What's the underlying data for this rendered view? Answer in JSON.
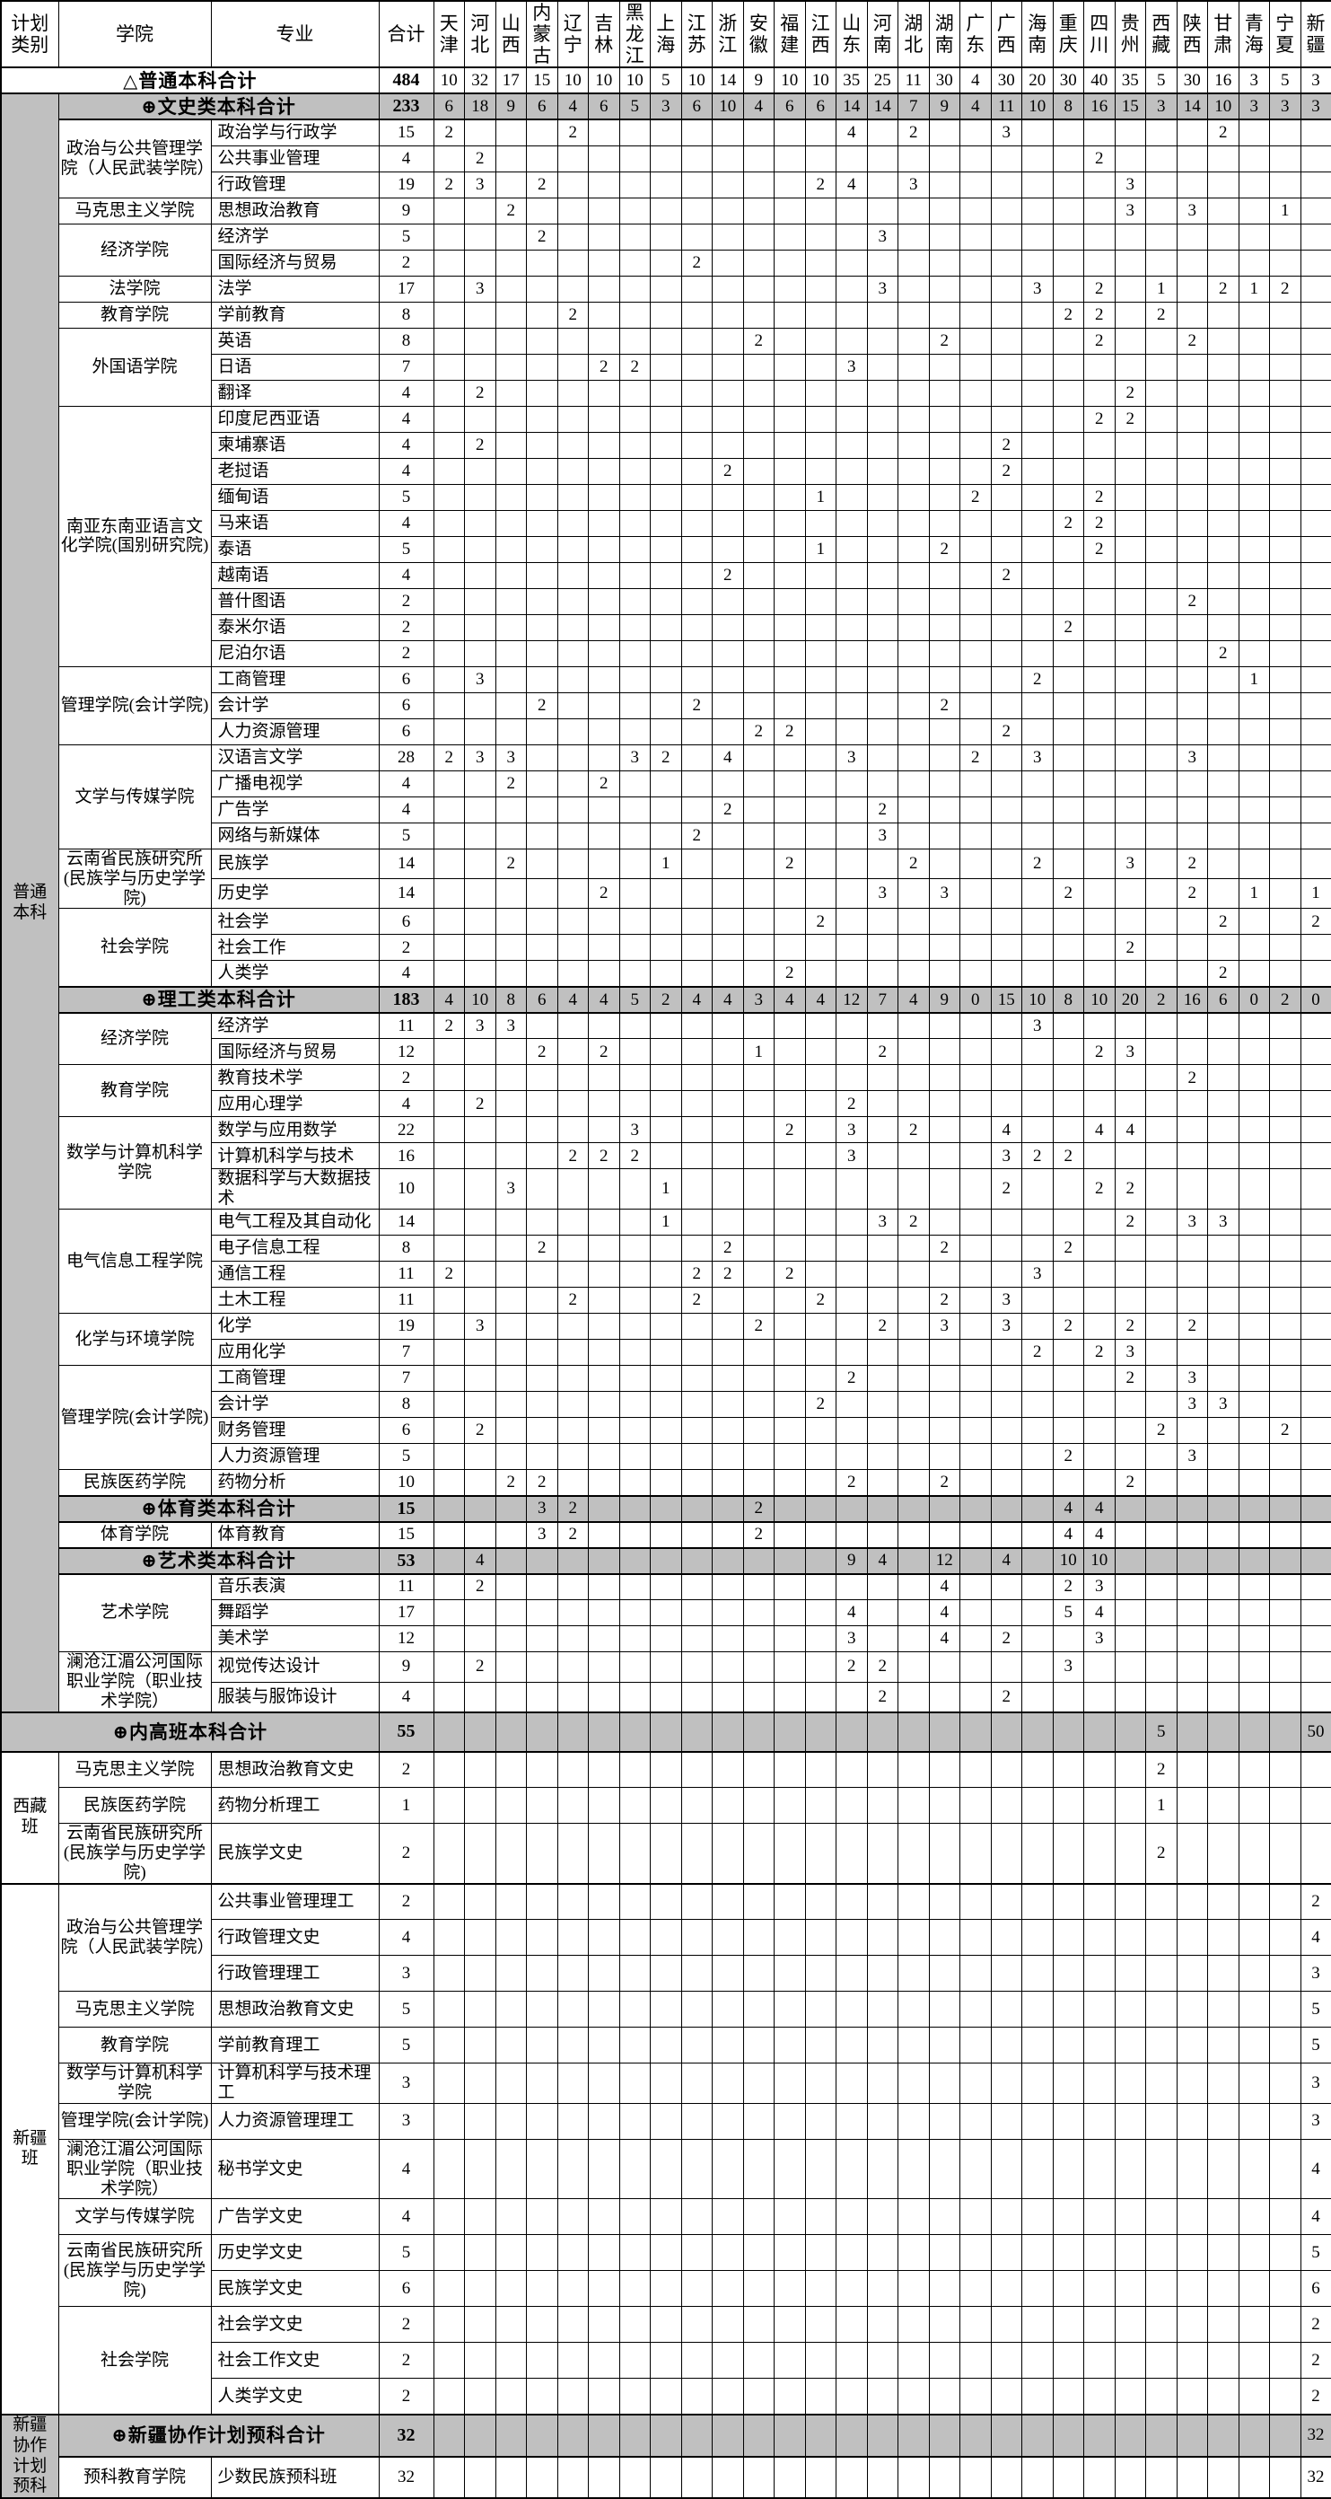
{
  "header": {
    "plan_type": "计划类别",
    "college": "学院",
    "major": "专业",
    "total": "合计"
  },
  "provinces": [
    "天津",
    "河北",
    "山西",
    "内蒙古",
    "辽宁",
    "吉林",
    "黑龙江",
    "上海",
    "江苏",
    "浙江",
    "安徽",
    "福建",
    "江西",
    "山东",
    "河南",
    "湖北",
    "湖南",
    "广东",
    "广西",
    "海南",
    "重庆",
    "四川",
    "贵州",
    "西藏",
    "陕西",
    "甘肃",
    "青海",
    "宁夏",
    "新疆"
  ],
  "rows": [
    {
      "kind": "grand",
      "label": "△普通本科合计",
      "total": 484,
      "values": {
        "天津": 10,
        "河北": 32,
        "山西": 17,
        "内蒙古": 15,
        "辽宁": 10,
        "吉林": 10,
        "黑龙江": 10,
        "上海": 5,
        "江苏": 10,
        "浙江": 14,
        "安徽": 9,
        "福建": 10,
        "江西": 10,
        "山东": 35,
        "河南": 25,
        "湖北": 11,
        "湖南": 30,
        "广东": 4,
        "广西": 30,
        "海南": 20,
        "重庆": 30,
        "四川": 40,
        "贵州": 35,
        "西藏": 5,
        "陕西": 30,
        "甘肃": 16,
        "青海": 3,
        "宁夏": 5,
        "新疆": 3
      }
    },
    {
      "kind": "section",
      "label": "⊕文史类本科合计",
      "total": 233,
      "plan": {
        "label": "普通本科",
        "span": 61
      },
      "values": {
        "天津": 6,
        "河北": 18,
        "山西": 9,
        "内蒙古": 6,
        "辽宁": 4,
        "吉林": 6,
        "黑龙江": 5,
        "上海": 3,
        "江苏": 6,
        "浙江": 10,
        "安徽": 4,
        "福建": 6,
        "江西": 6,
        "山东": 14,
        "河南": 14,
        "湖北": 7,
        "湖南": 9,
        "广东": 4,
        "广西": 11,
        "海南": 10,
        "重庆": 8,
        "四川": 16,
        "贵州": 15,
        "西藏": 3,
        "陕西": 14,
        "甘肃": 10,
        "青海": 3,
        "宁夏": 3,
        "新疆": 3
      }
    },
    {
      "kind": "major",
      "college": {
        "label": "政治与公共管理学院（人民武装学院）",
        "span": 3
      },
      "major": "政治学与行政学",
      "total": 15,
      "values": {
        "天津": 2,
        "辽宁": 2,
        "山东": 4,
        "湖北": 2,
        "广西": 3,
        "甘肃": 2
      }
    },
    {
      "kind": "major",
      "major": "公共事业管理",
      "total": 4,
      "values": {
        "河北": 2,
        "四川": 2
      }
    },
    {
      "kind": "major",
      "major": "行政管理",
      "total": 19,
      "values": {
        "天津": 2,
        "河北": 3,
        "内蒙古": 2,
        "江西": 2,
        "山东": 4,
        "湖北": 3,
        "贵州": 3
      }
    },
    {
      "kind": "major",
      "college": {
        "label": "马克思主义学院",
        "span": 1
      },
      "major": "思想政治教育",
      "total": 9,
      "values": {
        "山西": 2,
        "贵州": 3,
        "陕西": 3,
        "宁夏": 1
      }
    },
    {
      "kind": "major",
      "college": {
        "label": "经济学院",
        "span": 2
      },
      "major": "经济学",
      "total": 5,
      "values": {
        "内蒙古": 2,
        "河南": 3
      }
    },
    {
      "kind": "major",
      "major": "国际经济与贸易",
      "total": 2,
      "values": {
        "江苏": 2
      }
    },
    {
      "kind": "major",
      "college": {
        "label": "法学院",
        "span": 1
      },
      "major": "法学",
      "total": 17,
      "values": {
        "河北": 3,
        "河南": 3,
        "海南": 3,
        "四川": 2,
        "西藏": 1,
        "甘肃": 2,
        "青海": 1,
        "宁夏": 2
      }
    },
    {
      "kind": "major",
      "college": {
        "label": "教育学院",
        "span": 1
      },
      "major": "学前教育",
      "total": 8,
      "values": {
        "辽宁": 2,
        "重庆": 2,
        "四川": 2,
        "西藏": 2
      }
    },
    {
      "kind": "major",
      "college": {
        "label": "外国语学院",
        "span": 3
      },
      "major": "英语",
      "total": 8,
      "values": {
        "安徽": 2,
        "湖南": 2,
        "四川": 2,
        "陕西": 2
      }
    },
    {
      "kind": "major",
      "major": "日语",
      "total": 7,
      "values": {
        "吉林": 2,
        "黑龙江": 2,
        "山东": 3
      }
    },
    {
      "kind": "major",
      "major": "翻译",
      "total": 4,
      "values": {
        "河北": 2,
        "贵州": 2
      }
    },
    {
      "kind": "major",
      "college": {
        "label": "南亚东南亚语言文化学院(国别研究院)",
        "span": 10
      },
      "major": "印度尼西亚语",
      "total": 4,
      "values": {
        "四川": 2,
        "贵州": 2
      }
    },
    {
      "kind": "major",
      "major": "柬埔寨语",
      "total": 4,
      "values": {
        "河北": 2,
        "广西": 2
      }
    },
    {
      "kind": "major",
      "major": "老挝语",
      "total": 4,
      "values": {
        "浙江": 2,
        "广西": 2
      }
    },
    {
      "kind": "major",
      "major": "缅甸语",
      "total": 5,
      "values": {
        "江西": 1,
        "广东": 2,
        "四川": 2
      }
    },
    {
      "kind": "major",
      "major": "马来语",
      "total": 4,
      "values": {
        "重庆": 2,
        "四川": 2
      }
    },
    {
      "kind": "major",
      "major": "泰语",
      "total": 5,
      "values": {
        "江西": 1,
        "湖南": 2,
        "四川": 2
      }
    },
    {
      "kind": "major",
      "major": "越南语",
      "total": 4,
      "values": {
        "浙江": 2,
        "广西": 2
      }
    },
    {
      "kind": "major",
      "major": "普什图语",
      "total": 2,
      "values": {
        "陕西": 2
      }
    },
    {
      "kind": "major",
      "major": "泰米尔语",
      "total": 2,
      "values": {
        "重庆": 2
      }
    },
    {
      "kind": "major",
      "major": "尼泊尔语",
      "total": 2,
      "values": {
        "甘肃": 2
      }
    },
    {
      "kind": "major",
      "college": {
        "label": "管理学院(会计学院)",
        "span": 3
      },
      "major": "工商管理",
      "total": 6,
      "values": {
        "河北": 3,
        "海南": 2,
        "青海": 1
      }
    },
    {
      "kind": "major",
      "major": "会计学",
      "total": 6,
      "values": {
        "内蒙古": 2,
        "江苏": 2,
        "湖南": 2
      }
    },
    {
      "kind": "major",
      "major": "人力资源管理",
      "total": 6,
      "values": {
        "安徽": 2,
        "福建": 2,
        "广西": 2
      }
    },
    {
      "kind": "major",
      "college": {
        "label": "文学与传媒学院",
        "span": 4
      },
      "major": "汉语言文学",
      "total": 28,
      "values": {
        "天津": 2,
        "河北": 3,
        "山西": 3,
        "黑龙江": 3,
        "上海": 2,
        "浙江": 4,
        "山东": 3,
        "广东": 2,
        "海南": 3,
        "陕西": 3
      }
    },
    {
      "kind": "major",
      "major": "广播电视学",
      "total": 4,
      "values": {
        "山西": 2,
        "吉林": 2
      }
    },
    {
      "kind": "major",
      "major": "广告学",
      "total": 4,
      "values": {
        "浙江": 2,
        "河南": 2
      }
    },
    {
      "kind": "major",
      "major": "网络与新媒体",
      "total": 5,
      "values": {
        "江苏": 2,
        "河南": 3
      }
    },
    {
      "kind": "major",
      "college": {
        "label": "云南省民族研究所(民族学与历史学学院)",
        "span": 2
      },
      "major": "民族学",
      "total": 14,
      "values": {
        "山西": 2,
        "上海": 1,
        "福建": 2,
        "湖北": 2,
        "海南": 2,
        "贵州": 3,
        "陕西": 2
      }
    },
    {
      "kind": "major",
      "major": "历史学",
      "total": 14,
      "values": {
        "吉林": 2,
        "河南": 3,
        "湖南": 3,
        "重庆": 2,
        "陕西": 2,
        "青海": 1,
        "新疆": 1
      }
    },
    {
      "kind": "major",
      "college": {
        "label": "社会学院",
        "span": 3
      },
      "major": "社会学",
      "total": 6,
      "values": {
        "江西": 2,
        "甘肃": 2,
        "新疆": 2
      }
    },
    {
      "kind": "major",
      "major": "社会工作",
      "total": 2,
      "values": {
        "贵州": 2
      }
    },
    {
      "kind": "major",
      "major": "人类学",
      "total": 4,
      "values": {
        "福建": 2,
        "甘肃": 2
      }
    },
    {
      "kind": "section",
      "label": "⊕理工类本科合计",
      "total": 183,
      "values": {
        "天津": 4,
        "河北": 10,
        "山西": 8,
        "内蒙古": 6,
        "辽宁": 4,
        "吉林": 4,
        "黑龙江": 5,
        "上海": 2,
        "江苏": 4,
        "浙江": 4,
        "安徽": 3,
        "福建": 4,
        "江西": 4,
        "山东": 12,
        "河南": 7,
        "湖北": 4,
        "湖南": 9,
        "广东": 0,
        "广西": 15,
        "海南": 10,
        "重庆": 8,
        "四川": 10,
        "贵州": 20,
        "西藏": 2,
        "陕西": 16,
        "甘肃": 6,
        "青海": 0,
        "宁夏": 2,
        "新疆": 0
      }
    },
    {
      "kind": "major",
      "college": {
        "label": "经济学院",
        "span": 2
      },
      "major": "经济学",
      "total": 11,
      "values": {
        "天津": 2,
        "河北": 3,
        "山西": 3,
        "海南": 3
      }
    },
    {
      "kind": "major",
      "major": "国际经济与贸易",
      "total": 12,
      "values": {
        "内蒙古": 2,
        "吉林": 2,
        "安徽": 1,
        "河南": 2,
        "四川": 2,
        "贵州": 3
      }
    },
    {
      "kind": "major",
      "college": {
        "label": "教育学院",
        "span": 2
      },
      "major": "教育技术学",
      "total": 2,
      "values": {
        "陕西": 2
      }
    },
    {
      "kind": "major",
      "major": "应用心理学",
      "total": 4,
      "values": {
        "河北": 2,
        "山东": 2
      }
    },
    {
      "kind": "major",
      "college": {
        "label": "数学与计算机科学学院",
        "span": 3
      },
      "major": "数学与应用数学",
      "total": 22,
      "values": {
        "黑龙江": 3,
        "福建": 2,
        "山东": 3,
        "湖北": 2,
        "广西": 4,
        "四川": 4,
        "贵州": 4
      }
    },
    {
      "kind": "major",
      "major": "计算机科学与技术",
      "total": 16,
      "values": {
        "辽宁": 2,
        "吉林": 2,
        "黑龙江": 2,
        "山东": 3,
        "广西": 3,
        "海南": 2,
        "重庆": 2
      }
    },
    {
      "kind": "major",
      "major": "数据科学与大数据技术",
      "total": 10,
      "values": {
        "山西": 3,
        "上海": 1,
        "广西": 2,
        "四川": 2,
        "贵州": 2
      }
    },
    {
      "kind": "major",
      "college": {
        "label": "电气信息工程学院",
        "span": 4
      },
      "major": "电气工程及其自动化",
      "total": 14,
      "values": {
        "上海": 1,
        "河南": 3,
        "湖北": 2,
        "贵州": 2,
        "陕西": 3,
        "甘肃": 3
      }
    },
    {
      "kind": "major",
      "major": "电子信息工程",
      "total": 8,
      "values": {
        "内蒙古": 2,
        "浙江": 2,
        "湖南": 2,
        "重庆": 2
      }
    },
    {
      "kind": "major",
      "major": "通信工程",
      "total": 11,
      "values": {
        "天津": 2,
        "江苏": 2,
        "浙江": 2,
        "福建": 2,
        "海南": 3
      }
    },
    {
      "kind": "major",
      "major": "土木工程",
      "total": 11,
      "values": {
        "辽宁": 2,
        "江苏": 2,
        "江西": 2,
        "湖南": 2,
        "广西": 3
      }
    },
    {
      "kind": "major",
      "college": {
        "label": "化学与环境学院",
        "span": 2
      },
      "major": "化学",
      "total": 19,
      "values": {
        "河北": 3,
        "安徽": 2,
        "河南": 2,
        "湖南": 3,
        "广西": 3,
        "重庆": 2,
        "贵州": 2,
        "陕西": 2
      }
    },
    {
      "kind": "major",
      "major": "应用化学",
      "total": 7,
      "values": {
        "海南": 2,
        "四川": 2,
        "贵州": 3
      }
    },
    {
      "kind": "major",
      "college": {
        "label": "管理学院(会计学院)",
        "span": 4
      },
      "major": "工商管理",
      "total": 7,
      "values": {
        "山东": 2,
        "贵州": 2,
        "陕西": 3
      }
    },
    {
      "kind": "major",
      "major": "会计学",
      "total": 8,
      "values": {
        "江西": 2,
        "陕西": 3,
        "甘肃": 3
      }
    },
    {
      "kind": "major",
      "major": "财务管理",
      "total": 6,
      "values": {
        "河北": 2,
        "西藏": 2,
        "宁夏": 2
      }
    },
    {
      "kind": "major",
      "major": "人力资源管理",
      "total": 5,
      "values": {
        "重庆": 2,
        "陕西": 3
      }
    },
    {
      "kind": "major",
      "college": {
        "label": "民族医药学院",
        "span": 1
      },
      "major": "药物分析",
      "total": 10,
      "values": {
        "山西": 2,
        "内蒙古": 2,
        "山东": 2,
        "湖南": 2,
        "贵州": 2
      }
    },
    {
      "kind": "section",
      "label": "⊕体育类本科合计",
      "total": 15,
      "values": {
        "内蒙古": 3,
        "辽宁": 2,
        "安徽": 2,
        "重庆": 4,
        "四川": 4
      }
    },
    {
      "kind": "major",
      "college": {
        "label": "体育学院",
        "span": 1
      },
      "major": "体育教育",
      "total": 15,
      "values": {
        "内蒙古": 3,
        "辽宁": 2,
        "安徽": 2,
        "重庆": 4,
        "四川": 4
      }
    },
    {
      "kind": "section",
      "label": "⊕艺术类本科合计",
      "total": 53,
      "values": {
        "河北": 4,
        "山东": 9,
        "河南": 4,
        "湖南": 12,
        "广西": 4,
        "重庆": 10,
        "四川": 10
      }
    },
    {
      "kind": "major",
      "college": {
        "label": "艺术学院",
        "span": 3
      },
      "major": "音乐表演",
      "total": 11,
      "values": {
        "河北": 2,
        "湖南": 4,
        "重庆": 2,
        "四川": 3
      }
    },
    {
      "kind": "major",
      "major": "舞蹈学",
      "total": 17,
      "values": {
        "山东": 4,
        "湖南": 4,
        "重庆": 5,
        "四川": 4
      }
    },
    {
      "kind": "major",
      "major": "美术学",
      "total": 12,
      "values": {
        "山东": 3,
        "湖南": 4,
        "广西": 2,
        "四川": 3
      }
    },
    {
      "kind": "major",
      "college": {
        "label": "澜沧江湄公河国际职业学院（职业技术学院）",
        "span": 2
      },
      "major": "视觉传达设计",
      "total": 9,
      "values": {
        "河北": 2,
        "山东": 2,
        "河南": 2,
        "重庆": 3
      }
    },
    {
      "kind": "major",
      "major": "服装与服饰设计",
      "total": 4,
      "values": {
        "河南": 2,
        "广西": 2
      }
    },
    {
      "kind": "grand-gray",
      "label": "⊕内高班本科合计",
      "total": 55,
      "values": {
        "西藏": 5,
        "新疆": 50
      }
    },
    {
      "kind": "major",
      "plan": {
        "label": "西藏班",
        "span": 3
      },
      "college": {
        "label": "马克思主义学院",
        "span": 1
      },
      "major": "思想政治教育文史",
      "total": 2,
      "values": {
        "西藏": 2
      }
    },
    {
      "kind": "major",
      "college": {
        "label": "民族医药学院",
        "span": 1
      },
      "major": "药物分析理工",
      "total": 1,
      "values": {
        "西藏": 1
      }
    },
    {
      "kind": "major",
      "college": {
        "label": "云南省民族研究所(民族学与历史学学院)",
        "span": 1
      },
      "major": "民族学文史",
      "total": 2,
      "values": {
        "西藏": 2
      }
    },
    {
      "kind": "major",
      "gstart": true,
      "plan": {
        "label": "新疆班",
        "span": 14
      },
      "college": {
        "label": "政治与公共管理学院（人民武装学院）",
        "span": 3
      },
      "major": "公共事业管理理工",
      "total": 2,
      "values": {
        "新疆": 2
      }
    },
    {
      "kind": "major",
      "major": "行政管理文史",
      "total": 4,
      "values": {
        "新疆": 4
      }
    },
    {
      "kind": "major",
      "major": "行政管理理工",
      "total": 3,
      "values": {
        "新疆": 3
      }
    },
    {
      "kind": "major",
      "college": {
        "label": "马克思主义学院",
        "span": 1
      },
      "major": "思想政治教育文史",
      "total": 5,
      "values": {
        "新疆": 5
      }
    },
    {
      "kind": "major",
      "college": {
        "label": "教育学院",
        "span": 1
      },
      "major": "学前教育理工",
      "total": 5,
      "values": {
        "新疆": 5
      }
    },
    {
      "kind": "major",
      "college": {
        "label": "数学与计算机科学学院",
        "span": 1
      },
      "major": "计算机科学与技术理工",
      "total": 3,
      "values": {
        "新疆": 3
      }
    },
    {
      "kind": "major",
      "college": {
        "label": "管理学院(会计学院)",
        "span": 1
      },
      "major": "人力资源管理理工",
      "total": 3,
      "values": {
        "新疆": 3
      }
    },
    {
      "kind": "major",
      "college": {
        "label": "澜沧江湄公河国际职业学院（职业技术学院）",
        "span": 1
      },
      "major": "秘书学文史",
      "total": 4,
      "values": {
        "新疆": 4
      }
    },
    {
      "kind": "major",
      "college": {
        "label": "文学与传媒学院",
        "span": 1
      },
      "major": "广告学文史",
      "total": 4,
      "values": {
        "新疆": 4
      }
    },
    {
      "kind": "major",
      "college": {
        "label": "云南省民族研究所(民族学与历史学学院)",
        "span": 2
      },
      "major": "历史学文史",
      "total": 5,
      "values": {
        "新疆": 5
      }
    },
    {
      "kind": "major",
      "major": "民族学文史",
      "total": 6,
      "values": {
        "新疆": 6
      }
    },
    {
      "kind": "major",
      "college": {
        "label": "社会学院",
        "span": 3
      },
      "major": "社会学文史",
      "total": 2,
      "values": {
        "新疆": 2
      }
    },
    {
      "kind": "major",
      "major": "社会工作文史",
      "total": 2,
      "values": {
        "新疆": 2
      }
    },
    {
      "kind": "major",
      "major": "人类学文史",
      "total": 2,
      "values": {
        "新疆": 2
      }
    },
    {
      "kind": "section",
      "gstart": true,
      "label": "⊕新疆协作计划预科合计",
      "total": 32,
      "plan": {
        "label": "新疆协作计划预科",
        "span": 2
      },
      "values": {
        "新疆": 32
      }
    },
    {
      "kind": "major",
      "college": {
        "label": "预科教育学院",
        "span": 1
      },
      "major": "少数民族预科班",
      "total": 32,
      "values": {
        "新疆": 32
      }
    }
  ]
}
